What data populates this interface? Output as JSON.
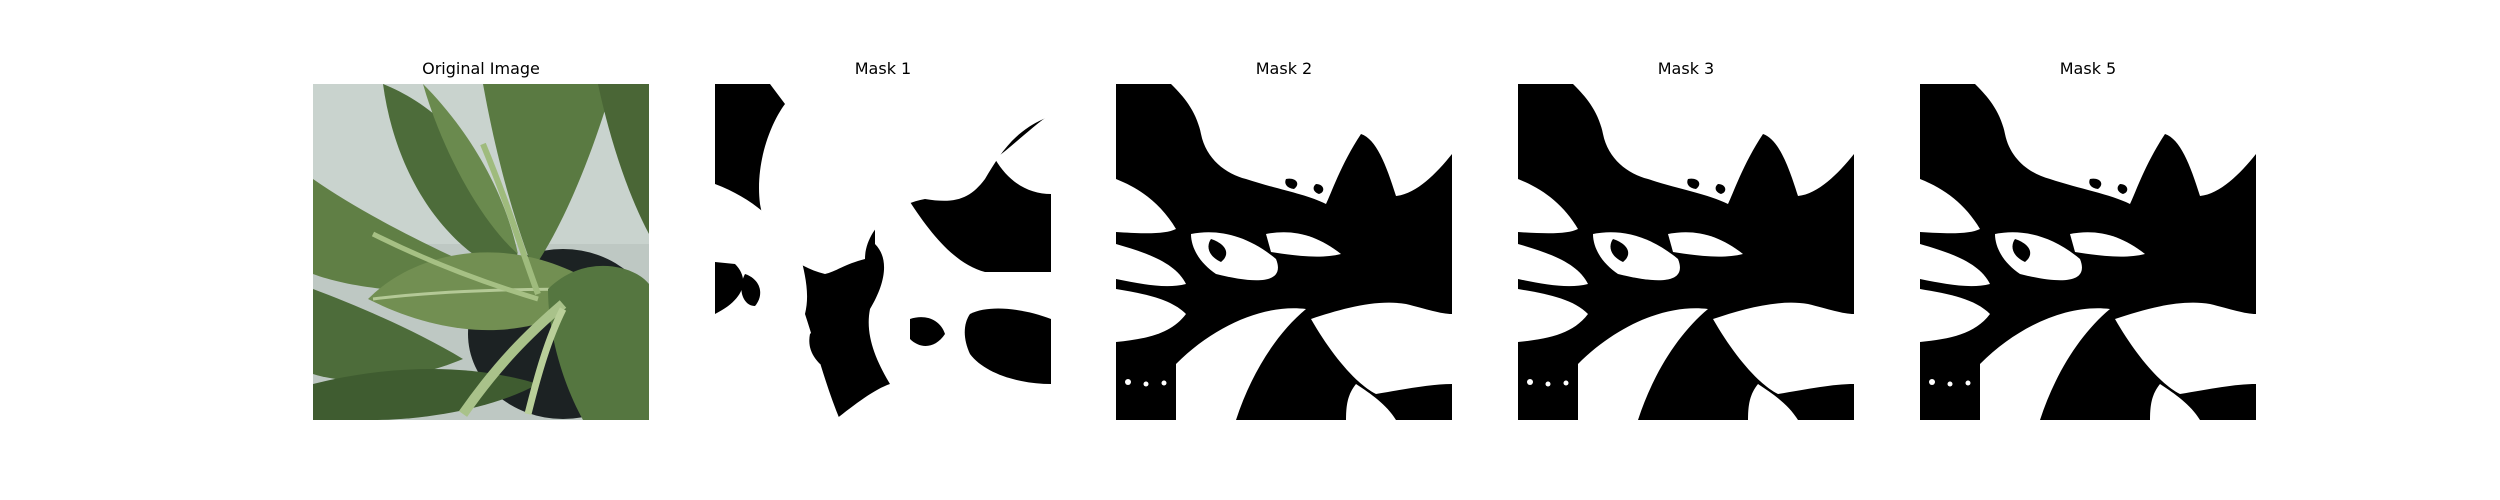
{
  "panels": [
    {
      "title": "Original Image",
      "kind": "photo",
      "icon": "plant-photo"
    },
    {
      "title": "Mask 1",
      "kind": "mask",
      "variant": 1,
      "icon": "segmentation-mask"
    },
    {
      "title": "Mask 2",
      "kind": "mask",
      "variant": 2,
      "icon": "segmentation-mask"
    },
    {
      "title": "Mask 3",
      "kind": "mask",
      "variant": 2,
      "icon": "segmentation-mask"
    },
    {
      "title": "Mask 5",
      "kind": "mask",
      "variant": 2,
      "icon": "segmentation-mask"
    }
  ],
  "colors": {
    "background": "#ffffff",
    "mask_foreground": "#ffffff",
    "mask_background": "#000000",
    "leaf_dark": "#4d6c3a",
    "leaf_mid": "#6a8a4e",
    "leaf_light": "#a9c28a",
    "backdrop": "#c9d3ce",
    "pot": "#1c2223"
  }
}
